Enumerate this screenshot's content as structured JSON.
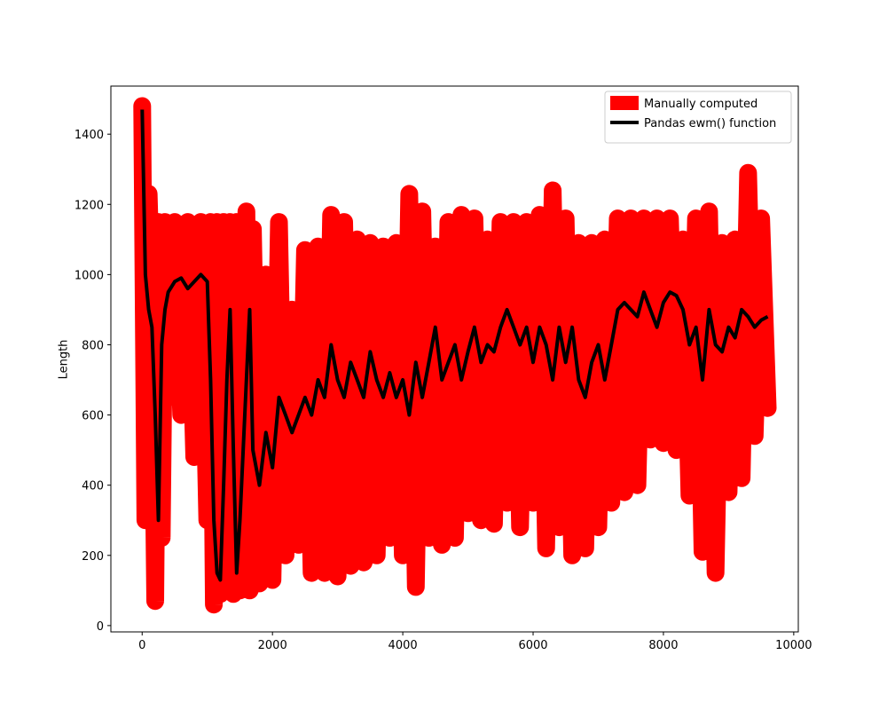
{
  "chart_data": {
    "type": "line",
    "y_label": "Length",
    "x": [
      0,
      50,
      100,
      150,
      200,
      250,
      300,
      350,
      400,
      500,
      600,
      700,
      800,
      900,
      1000,
      1050,
      1100,
      1150,
      1200,
      1250,
      1300,
      1350,
      1400,
      1450,
      1500,
      1600,
      1650,
      1700,
      1800,
      1900,
      2000,
      2100,
      2200,
      2300,
      2400,
      2500,
      2600,
      2700,
      2800,
      2900,
      3000,
      3100,
      3200,
      3300,
      3400,
      3500,
      3600,
      3700,
      3800,
      3900,
      4000,
      4100,
      4200,
      4300,
      4400,
      4500,
      4600,
      4700,
      4800,
      4900,
      5000,
      5100,
      5200,
      5300,
      5400,
      5500,
      5600,
      5700,
      5800,
      5900,
      6000,
      6100,
      6200,
      6300,
      6400,
      6500,
      6600,
      6700,
      6800,
      6900,
      7000,
      7100,
      7200,
      7300,
      7400,
      7500,
      7600,
      7700,
      7800,
      7900,
      8000,
      8100,
      8200,
      8300,
      8400,
      8500,
      8600,
      8700,
      8800,
      8900,
      9000,
      9100,
      9200,
      9300,
      9400,
      9500,
      9600
    ],
    "series": [
      {
        "name": "Manually computed",
        "color": "#ff0000",
        "width": 20,
        "values": [
          1480,
          300,
          1230,
          900,
          70,
          1150,
          250,
          1150,
          650,
          1150,
          600,
          1150,
          480,
          1150,
          300,
          1150,
          60,
          1150,
          90,
          1150,
          100,
          1150,
          90,
          1150,
          100,
          1180,
          100,
          1130,
          120,
          1000,
          130,
          1150,
          200,
          900,
          230,
          1070,
          150,
          1080,
          150,
          1170,
          140,
          1150,
          170,
          1100,
          180,
          1090,
          200,
          1080,
          250,
          1090,
          200,
          1230,
          110,
          1180,
          250,
          1080,
          230,
          1150,
          250,
          1170,
          320,
          1160,
          300,
          1100,
          290,
          1150,
          350,
          1150,
          280,
          1150,
          350,
          1170,
          220,
          1240,
          280,
          1160,
          200,
          1090,
          220,
          1090,
          280,
          1100,
          350,
          1160,
          380,
          1160,
          400,
          1160,
          530,
          1160,
          520,
          1160,
          500,
          1100,
          370,
          1160,
          210,
          1180,
          150,
          1090,
          380,
          1100,
          420,
          1290,
          540,
          1160,
          620
        ]
      },
      {
        "name": "Pandas ewm() function",
        "color": "#000000",
        "width": 4,
        "values": [
          1470,
          1000,
          900,
          850,
          600,
          300,
          800,
          900,
          950,
          980,
          990,
          960,
          980,
          1000,
          980,
          700,
          300,
          150,
          130,
          400,
          700,
          900,
          500,
          150,
          300,
          700,
          900,
          500,
          400,
          550,
          450,
          650,
          600,
          550,
          600,
          650,
          600,
          700,
          650,
          800,
          700,
          650,
          750,
          700,
          650,
          780,
          700,
          650,
          720,
          650,
          700,
          600,
          750,
          650,
          750,
          850,
          700,
          750,
          800,
          700,
          780,
          850,
          750,
          800,
          780,
          850,
          900,
          850,
          800,
          850,
          750,
          850,
          800,
          700,
          850,
          750,
          850,
          700,
          650,
          750,
          800,
          700,
          800,
          900,
          920,
          900,
          880,
          950,
          900,
          850,
          920,
          950,
          940,
          900,
          800,
          850,
          700,
          900,
          800,
          780,
          850,
          820,
          900,
          880,
          850,
          870,
          880
        ]
      }
    ],
    "xlim": [
      -480,
      10070
    ],
    "ylim": [
      -18,
      1537
    ],
    "xticks": [
      0,
      2000,
      4000,
      6000,
      8000,
      10000
    ],
    "yticks": [
      0,
      200,
      400,
      600,
      800,
      1000,
      1200,
      1400
    ],
    "legend": "upper right"
  }
}
